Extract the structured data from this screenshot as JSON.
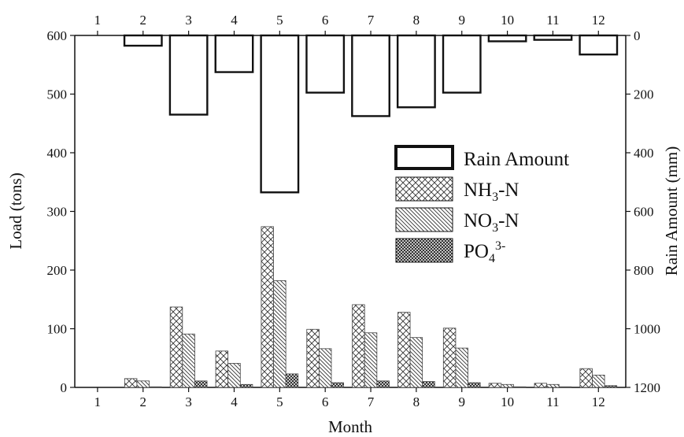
{
  "chart_data": {
    "type": "bar",
    "xlabel": "Month",
    "ylabel_left": "Load (tons)",
    "ylabel_right": "Rain Amount (mm)",
    "categories": [
      "1",
      "2",
      "3",
      "4",
      "5",
      "6",
      "7",
      "8",
      "9",
      "10",
      "11",
      "12"
    ],
    "ylim_left": [
      0,
      600
    ],
    "yticks_left": [
      0,
      100,
      200,
      300,
      400,
      500,
      600
    ],
    "ylim_right_inverted": [
      0,
      1200
    ],
    "yticks_right": [
      0,
      200,
      400,
      600,
      800,
      1000,
      1200
    ],
    "series": [
      {
        "name": "Rain Amount",
        "axis": "right",
        "values": [
          0,
          35,
          270,
          125,
          535,
          195,
          275,
          245,
          195,
          20,
          15,
          65
        ]
      },
      {
        "name": "NH₃-N",
        "axis": "left",
        "values": [
          0,
          15,
          137,
          62,
          274,
          99,
          141,
          128,
          101,
          7,
          7,
          32
        ]
      },
      {
        "name": "NO₃-N",
        "axis": "left",
        "values": [
          0,
          11,
          91,
          41,
          182,
          66,
          93,
          85,
          67,
          5,
          5,
          21
        ]
      },
      {
        "name": "PO₄³⁻",
        "axis": "left",
        "values": [
          0,
          1,
          11,
          5,
          23,
          8,
          11,
          10,
          8,
          1,
          1,
          3
        ]
      }
    ],
    "legend": {
      "position": "top-right",
      "items": [
        {
          "base": "Rain Amount",
          "sub": "",
          "sup": "",
          "tail": ""
        },
        {
          "base": "NH",
          "sub": "3",
          "sup": "",
          "tail": "-N"
        },
        {
          "base": "NO",
          "sub": "3",
          "sup": "",
          "tail": "-N"
        },
        {
          "base": "PO",
          "sub": "4",
          "sup": "3-",
          "tail": ""
        }
      ]
    },
    "colors": {
      "stroke": "#111111",
      "fill": "#ffffff"
    }
  }
}
